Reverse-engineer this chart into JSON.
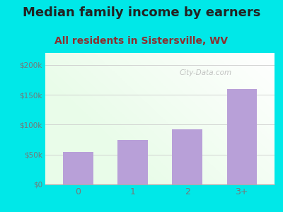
{
  "title": "Median family income by earners",
  "subtitle": "All residents in Sistersville, WV",
  "categories": [
    "0",
    "1",
    "2",
    "3+"
  ],
  "values": [
    55000,
    75000,
    92000,
    160000
  ],
  "bar_color": "#b8a0d8",
  "ylim": [
    0,
    220000
  ],
  "yticks": [
    0,
    50000,
    100000,
    150000,
    200000
  ],
  "ytick_labels": [
    "$0",
    "$50k",
    "$100k",
    "$150k",
    "$200k"
  ],
  "title_fontsize": 13,
  "subtitle_fontsize": 10,
  "outer_bg": "#00e8e8",
  "watermark": "City-Data.com",
  "tick_color": "#777777",
  "title_color": "#222222",
  "subtitle_color": "#8B3030"
}
